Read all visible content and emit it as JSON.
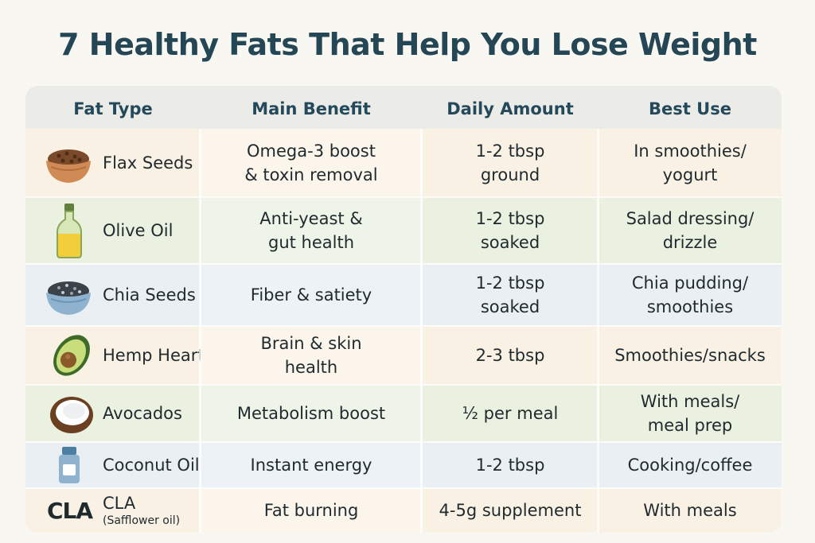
{
  "title": "7 Healthy Fats That Help You Lose Weight",
  "headers": [
    "Fat Type",
    "Main Benefit",
    "Daily Amount",
    "Best Use"
  ],
  "colors": {
    "title": "#244655",
    "header_text": "#24495a",
    "row_orange": "#faf1e5",
    "row_green": "#eaf1e1",
    "row_blue": "#e9eff3"
  },
  "rows": [
    {
      "fat": "Flax Seeds",
      "icon": "bowl-flax-seeds-icon",
      "benefit": "Omega-3 boost\n& toxin removal",
      "amount": "1-2 tbsp\nground",
      "use": "In smoothies/\nyogurt"
    },
    {
      "fat": "Olive Oil",
      "icon": "olive-oil-bottle-icon",
      "benefit": "Anti-yeast &\ngut health",
      "amount": "1-2 tbsp\nsoaked",
      "use": "Salad dressing/\ndrizzle"
    },
    {
      "fat": "Chia Seeds",
      "icon": "bowl-chia-seeds-icon",
      "benefit": "Fiber & satiety",
      "amount": "1-2 tbsp\nsoaked",
      "use": "Chia pudding/\nsmoothies"
    },
    {
      "fat": "Hemp Hearts",
      "icon": "avocado-icon",
      "benefit": "Brain & skin\nhealth",
      "amount": "2-3 tbsp",
      "use": "Smoothies/snacks"
    },
    {
      "fat": "Avocados",
      "icon": "coconut-icon",
      "benefit": "Metabolism boost",
      "amount": "½ per meal",
      "use": "With meals/\nmeal prep"
    },
    {
      "fat": "Coconut Oil",
      "icon": "coconut-oil-jar-icon",
      "benefit": "Instant energy",
      "amount": "1-2 tbsp",
      "use": "Cooking/coffee"
    },
    {
      "fat": "CLA",
      "sub": "(Safflower oil)",
      "logo": "CLA",
      "benefit": "Fat burning",
      "amount": "4-5g supplement",
      "use": "With meals"
    }
  ]
}
